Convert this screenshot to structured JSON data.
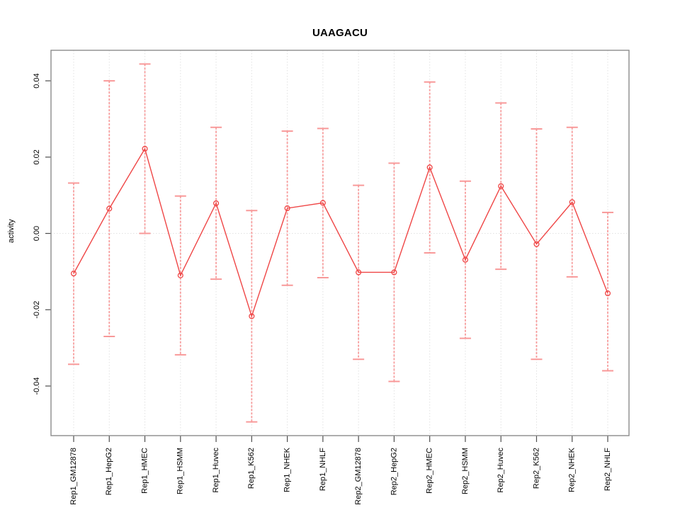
{
  "figure": {
    "title": "UAAGACU",
    "y_axis_label": "activity"
  },
  "colors": {
    "background": "#ffffff",
    "plot_border": "#8c8c8c",
    "grid": "#e2e2e2",
    "tick": "#4d4d4d",
    "tick_label": "#000000",
    "series_line": "#ef4646",
    "error_bar": "#f89494"
  },
  "chart_data": {
    "type": "line",
    "title": "UAAGACU",
    "xlabel": "",
    "ylabel": "activity",
    "grid": "dotted, vertical gridline at every category and horizontal line at y=0",
    "legend": "none",
    "marker": "open-circle",
    "error_bars": true,
    "ylim": [
      -0.053,
      0.048
    ],
    "yticks": [
      {
        "value": 0.04,
        "label": "0.04"
      },
      {
        "value": 0.02,
        "label": "0.02"
      },
      {
        "value": 0.0,
        "label": "0.00"
      },
      {
        "value": -0.02,
        "label": "-0.02"
      },
      {
        "value": -0.04,
        "label": "-0.04"
      }
    ],
    "categories": [
      "Rep1_GM12878",
      "Rep1_HepG2",
      "Rep1_HMEC",
      "Rep1_HSMM",
      "Rep1_Huvec",
      "Rep1_K562",
      "Rep1_NHEK",
      "Rep1_NHLF",
      "Rep2_GM12878",
      "Rep2_HepG2",
      "Rep2_HMEC",
      "Rep2_HSMM",
      "Rep2_Huvec",
      "Rep2_K562",
      "Rep2_NHEK",
      "Rep2_NHLF"
    ],
    "values": [
      -0.0105,
      0.0065,
      0.0222,
      -0.011,
      0.0079,
      -0.0217,
      0.0066,
      0.008,
      -0.0102,
      -0.0102,
      0.0173,
      -0.0069,
      0.0124,
      -0.0028,
      0.0082,
      -0.0157
    ],
    "error_upper": [
      0.0132,
      0.04,
      0.0444,
      0.0098,
      0.0278,
      0.006,
      0.0268,
      0.0275,
      0.0126,
      0.0184,
      0.0397,
      0.0137,
      0.0342,
      0.0274,
      0.0278,
      0.0055
    ],
    "error_lower": [
      -0.0343,
      -0.027,
      0.0,
      -0.0318,
      -0.012,
      -0.0494,
      -0.0136,
      -0.0116,
      -0.033,
      -0.0388,
      -0.0051,
      -0.0275,
      -0.0094,
      -0.033,
      -0.0114,
      -0.036
    ]
  }
}
